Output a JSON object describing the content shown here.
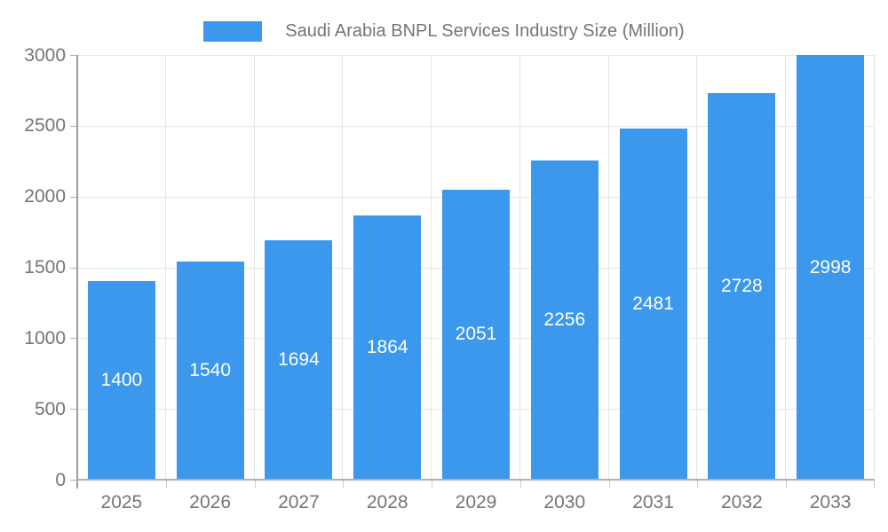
{
  "legend": {
    "label": "Saudi Arabia BNPL Services Industry Size (Million)"
  },
  "chart_data": {
    "type": "bar",
    "title": "Saudi Arabia BNPL Services Industry Size (Million)",
    "categories": [
      "2025",
      "2026",
      "2027",
      "2028",
      "2029",
      "2030",
      "2031",
      "2032",
      "2033"
    ],
    "values": [
      1400,
      1540,
      1694,
      1864,
      2051,
      2256,
      2481,
      2728,
      2998
    ],
    "xlabel": "",
    "ylabel": "",
    "ylim": [
      0,
      3000
    ],
    "yticks": [
      0,
      500,
      1000,
      1500,
      2000,
      2500,
      3000
    ],
    "grid": true,
    "legend_position": "top",
    "bar_color": "#3b98ed",
    "value_label_color": "#ffffff",
    "axis_text_color": "#757575",
    "grid_color": "#e6e6e6"
  }
}
